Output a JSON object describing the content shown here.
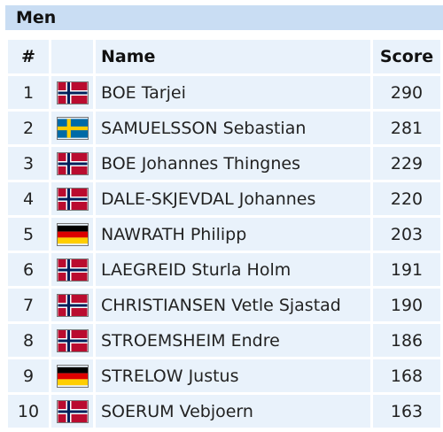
{
  "section": {
    "title": "Men"
  },
  "table": {
    "headers": {
      "rank": "#",
      "name": "Name",
      "score": "Score"
    },
    "rows": [
      {
        "rank": "1",
        "country": "norway-flag-icon",
        "name": "BOE Tarjei",
        "score": "290"
      },
      {
        "rank": "2",
        "country": "sweden-flag-icon",
        "name": "SAMUELSSON Sebastian",
        "score": "281"
      },
      {
        "rank": "3",
        "country": "norway-flag-icon",
        "name": "BOE Johannes Thingnes",
        "score": "229"
      },
      {
        "rank": "4",
        "country": "norway-flag-icon",
        "name": "DALE-SKJEVDAL Johannes",
        "score": "220"
      },
      {
        "rank": "5",
        "country": "germany-flag-icon",
        "name": "NAWRATH Philipp",
        "score": "203"
      },
      {
        "rank": "6",
        "country": "norway-flag-icon",
        "name": "LAEGREID Sturla Holm",
        "score": "191"
      },
      {
        "rank": "7",
        "country": "norway-flag-icon",
        "name": "CHRISTIANSEN Vetle Sjastad",
        "score": "190"
      },
      {
        "rank": "8",
        "country": "norway-flag-icon",
        "name": "STROEMSHEIM Endre",
        "score": "186"
      },
      {
        "rank": "9",
        "country": "germany-flag-icon",
        "name": "STRELOW Justus",
        "score": "168"
      },
      {
        "rank": "10",
        "country": "norway-flag-icon",
        "name": "SOERUM Vebjoern",
        "score": "163"
      }
    ]
  },
  "colors": {
    "header_bg": "#c9ddf3",
    "cell_bg": "#e9f2fb",
    "norway_red": "#ba0c2f",
    "norway_blue": "#00205b",
    "sweden_blue": "#006aa7",
    "sweden_yellow": "#fecc00",
    "germany_black": "#000000",
    "germany_red": "#dd0000",
    "germany_gold": "#ffce00"
  }
}
